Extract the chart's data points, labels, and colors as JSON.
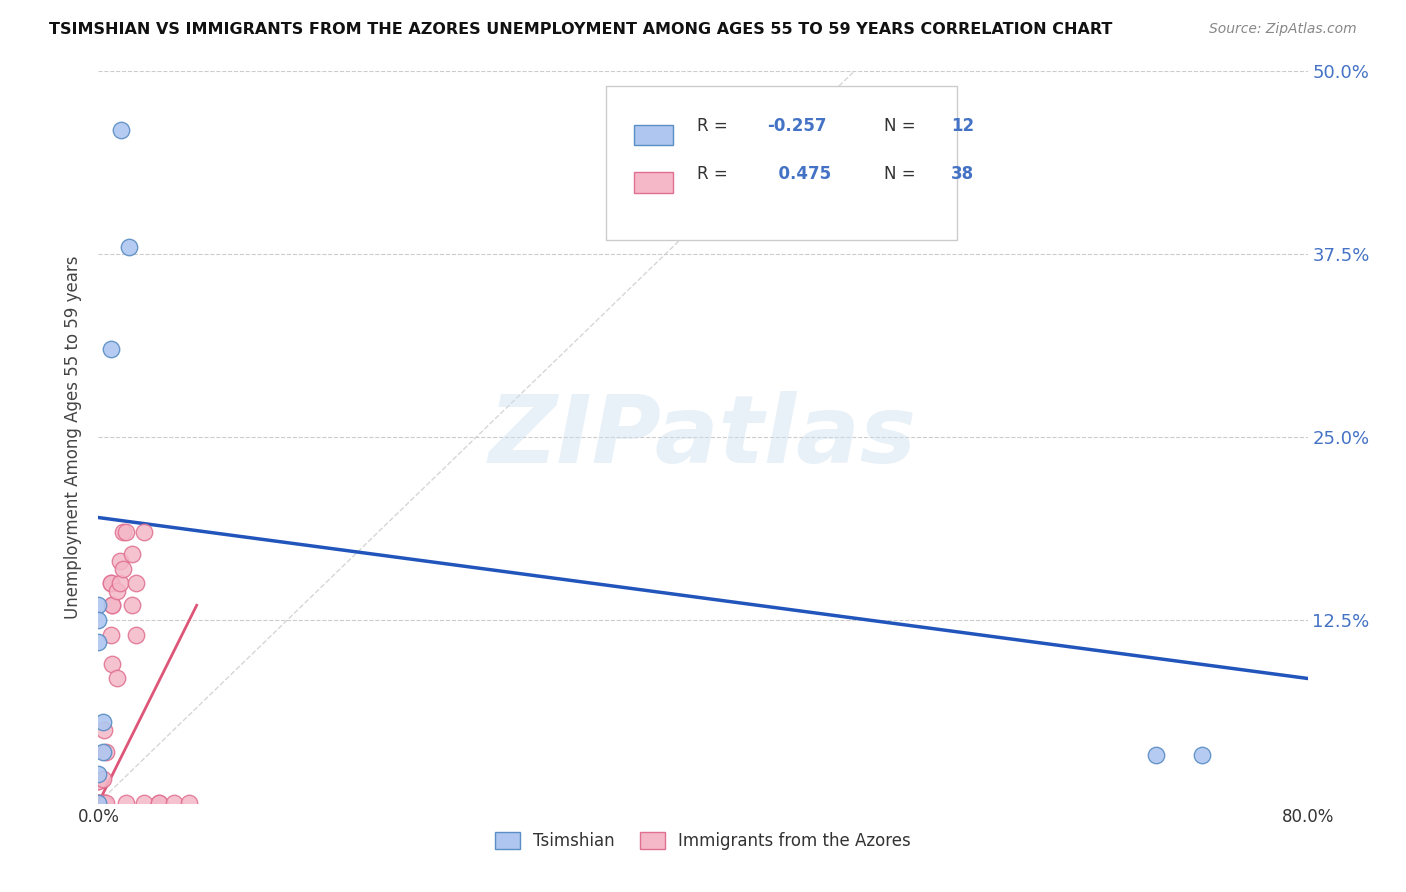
{
  "title": "TSIMSHIAN VS IMMIGRANTS FROM THE AZORES UNEMPLOYMENT AMONG AGES 55 TO 59 YEARS CORRELATION CHART",
  "source": "Source: ZipAtlas.com",
  "ylabel": "Unemployment Among Ages 55 to 59 years",
  "xlim": [
    0.0,
    0.8
  ],
  "ylim": [
    0.0,
    0.5
  ],
  "xticks": [
    0.0,
    0.1,
    0.2,
    0.3,
    0.4,
    0.5,
    0.6,
    0.7,
    0.8
  ],
  "yticks": [
    0.0,
    0.125,
    0.25,
    0.375,
    0.5
  ],
  "tsimshian_x": [
    0.015,
    0.02,
    0.008,
    0.0,
    0.0,
    0.0,
    0.003,
    0.003,
    0.0,
    0.7,
    0.73,
    0.0
  ],
  "tsimshian_y": [
    0.46,
    0.38,
    0.31,
    0.135,
    0.125,
    0.11,
    0.055,
    0.035,
    0.02,
    0.033,
    0.033,
    0.0
  ],
  "azores_x": [
    0.0,
    0.0,
    0.0,
    0.0,
    0.0,
    0.0,
    0.0,
    0.003,
    0.003,
    0.003,
    0.004,
    0.004,
    0.005,
    0.005,
    0.008,
    0.008,
    0.008,
    0.009,
    0.009,
    0.009,
    0.012,
    0.012,
    0.014,
    0.014,
    0.016,
    0.016,
    0.018,
    0.018,
    0.022,
    0.022,
    0.025,
    0.025,
    0.03,
    0.03,
    0.04,
    0.04,
    0.05,
    0.06
  ],
  "azores_y": [
    0.0,
    0.0,
    0.0,
    0.0,
    0.0,
    0.015,
    0.015,
    0.0,
    0.0,
    0.016,
    0.0,
    0.05,
    0.0,
    0.035,
    0.15,
    0.15,
    0.115,
    0.095,
    0.135,
    0.135,
    0.085,
    0.145,
    0.15,
    0.165,
    0.185,
    0.16,
    0.0,
    0.185,
    0.135,
    0.17,
    0.115,
    0.15,
    0.0,
    0.185,
    0.0,
    0.0,
    0.0,
    0.0
  ],
  "background_color": "#ffffff",
  "grid_color": "#cccccc",
  "tsimshian_dot_color": "#aec6f0",
  "tsimshian_dot_edge": "#5b8ec4",
  "azores_dot_color": "#f4b8c8",
  "azores_dot_edge": "#e07090",
  "tsimshian_line_color": "#2255bb",
  "azores_line_color": "#dd5577",
  "ref_line_color": "#cccccc",
  "tsimshian_line_y0": 0.195,
  "tsimshian_line_y1": 0.085,
  "azores_line_x0": 0.0,
  "azores_line_x1": 0.065,
  "azores_line_y0": 0.0,
  "azores_line_y1": 0.135,
  "watermark": "ZIPatlas",
  "watermark_zip_color": "#d0e8f8",
  "watermark_atlas_color": "#c0d8e8",
  "legend_r_color": "#4472c4",
  "legend_r1": "-0.257",
  "legend_n1": "12",
  "legend_r2": "0.475",
  "legend_n2": "38"
}
